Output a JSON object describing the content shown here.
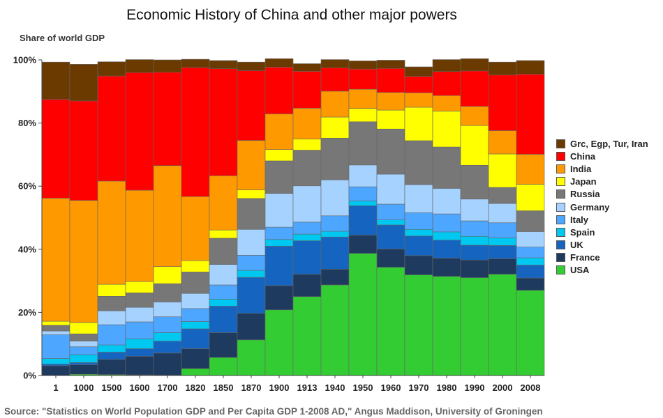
{
  "chart_data": {
    "type": "bar",
    "stacked": true,
    "title": "Economic History of China and other major powers",
    "ylabel": "Share of world GDP",
    "xlabel": "",
    "ylim": [
      0,
      100
    ],
    "yticks": [
      "0%",
      "20%",
      "40%",
      "60%",
      "80%",
      "100%"
    ],
    "categories": [
      "1",
      "1000",
      "1500",
      "1600",
      "1700",
      "1820",
      "1850",
      "1870",
      "1900",
      "1913",
      "1940",
      "1950",
      "1960",
      "1970",
      "1980",
      "1990",
      "2000",
      "2008"
    ],
    "series": [
      {
        "name": "USA",
        "color": "#33cc33",
        "values": [
          0,
          0.4,
          0.3,
          0.2,
          0.1,
          2.2,
          5.7,
          11.3,
          20.8,
          25,
          28.7,
          38.7,
          34.3,
          31.9,
          31.4,
          31,
          32.1,
          27
        ]
      },
      {
        "name": "France",
        "color": "#1f3a5f",
        "values": [
          3.1,
          3,
          4.8,
          5.9,
          7,
          6.3,
          7.9,
          8.4,
          7.7,
          7.1,
          5,
          5.8,
          5.8,
          6.1,
          5.8,
          5.6,
          4.9,
          3.9
        ]
      },
      {
        "name": "UK",
        "color": "#1565c0",
        "values": [
          0.5,
          0.7,
          2.3,
          2.4,
          3.8,
          6.3,
          8.4,
          11.4,
          12.5,
          10.6,
          10.2,
          9.3,
          7.6,
          6.2,
          5.7,
          4.7,
          4.2,
          4.1
        ]
      },
      {
        "name": "Spain",
        "color": "#00c8f0",
        "values": [
          1.8,
          2.5,
          2.3,
          3.1,
          2.7,
          2.3,
          2.2,
          2.2,
          2.1,
          2.1,
          1.8,
          1.5,
          1.6,
          2.1,
          2.6,
          2.8,
          2.4,
          2.3
        ]
      },
      {
        "name": "Italy",
        "color": "#4da6ff",
        "values": [
          7.5,
          2.5,
          6.4,
          5.4,
          5,
          4.1,
          4.5,
          4.8,
          3.9,
          3.8,
          4.9,
          4.5,
          5,
          5.3,
          5.7,
          4.9,
          4.8,
          3.4
        ]
      },
      {
        "name": "Germany",
        "color": "#a6d2ff",
        "values": [
          1.2,
          1.8,
          4.4,
          4.6,
          4.7,
          4.8,
          6.5,
          8.2,
          10.7,
          11.5,
          11.4,
          6.9,
          9.5,
          8.9,
          8.1,
          6.9,
          6.1,
          4.9
        ]
      },
      {
        "name": "Russia",
        "color": "#777777",
        "values": [
          1.8,
          2.3,
          4.6,
          4.6,
          5.8,
          6.8,
          8.3,
          9.8,
          10.3,
          11.3,
          13.2,
          13.7,
          14.3,
          13.9,
          13.1,
          10.7,
          5.1,
          6.6
        ]
      },
      {
        "name": "Japan",
        "color": "#ffff00",
        "values": [
          1.3,
          3.6,
          3.8,
          3.6,
          5.4,
          3.6,
          2.6,
          2.7,
          3.6,
          3.5,
          6.7,
          4.2,
          6,
          10.6,
          11.4,
          12.6,
          10.6,
          8.4
        ]
      },
      {
        "name": "India",
        "color": "#ff9900",
        "values": [
          39,
          38.7,
          32.7,
          28.9,
          32,
          20.3,
          17.2,
          15.7,
          11.3,
          9.8,
          8.2,
          6.1,
          5.6,
          4.6,
          4.9,
          6.1,
          7.4,
          9.5
        ]
      },
      {
        "name": "China",
        "color": "#ff0000",
        "values": [
          31.3,
          31.5,
          33.3,
          37.3,
          29.6,
          40.9,
          33.9,
          22.1,
          14.8,
          11.7,
          7.4,
          6.4,
          7.6,
          5.2,
          7.6,
          11.2,
          17.6,
          25.4
        ]
      },
      {
        "name": "Grc, Egp, Tur, Iran",
        "color": "#6b3a00",
        "values": [
          11.8,
          11.6,
          4.5,
          4.1,
          3.9,
          2.6,
          2.6,
          2.7,
          2.7,
          2.4,
          2.6,
          2.6,
          2.6,
          3,
          3.8,
          3.9,
          4.1,
          4.3
        ]
      }
    ],
    "legend_position": "right",
    "grid": false
  },
  "footer": {
    "source": "Source: \"Statistics on World Population GDP and Per Capita GDP 1-2008 AD,\" Angus Maddison, University of Groningen"
  }
}
